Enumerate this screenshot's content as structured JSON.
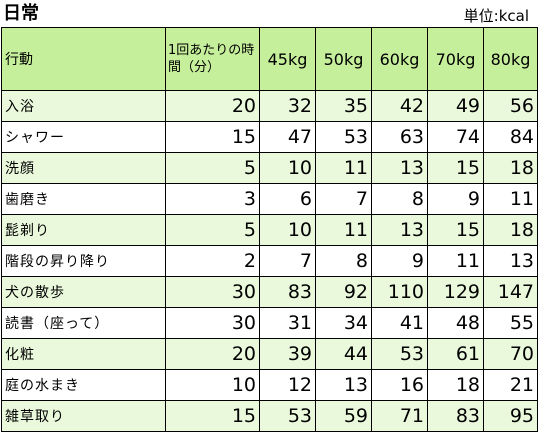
{
  "title": "日常",
  "unit": "単位:kcal",
  "headers": {
    "activity": "行動",
    "time": "1回あたりの時間（分）",
    "weights": [
      "45kg",
      "50kg",
      "60kg",
      "70kg",
      "80kg"
    ]
  },
  "rows": [
    {
      "activity": "入浴",
      "time": "20",
      "v": [
        "32",
        "35",
        "42",
        "49",
        "56"
      ]
    },
    {
      "activity": "シャワー",
      "time": "15",
      "v": [
        "47",
        "53",
        "63",
        "74",
        "84"
      ]
    },
    {
      "activity": "洗顔",
      "time": "5",
      "v": [
        "10",
        "11",
        "13",
        "15",
        "18"
      ]
    },
    {
      "activity": "歯磨き",
      "time": "3",
      "v": [
        "6",
        "7",
        "8",
        "9",
        "11"
      ]
    },
    {
      "activity": "髭剃り",
      "time": "5",
      "v": [
        "10",
        "11",
        "13",
        "15",
        "18"
      ]
    },
    {
      "activity": "階段の昇り降り",
      "time": "2",
      "v": [
        "7",
        "8",
        "9",
        "11",
        "13"
      ]
    },
    {
      "activity": "犬の散歩",
      "time": "30",
      "v": [
        "83",
        "92",
        "110",
        "129",
        "147"
      ]
    },
    {
      "activity": "読書（座って）",
      "time": "30",
      "v": [
        "31",
        "34",
        "41",
        "48",
        "55"
      ]
    },
    {
      "activity": "化粧",
      "time": "20",
      "v": [
        "39",
        "44",
        "53",
        "61",
        "70"
      ]
    },
    {
      "activity": "庭の水まき",
      "time": "10",
      "v": [
        "12",
        "13",
        "16",
        "18",
        "21"
      ]
    },
    {
      "activity": "雑草取り",
      "time": "15",
      "v": [
        "53",
        "59",
        "71",
        "83",
        "95"
      ]
    }
  ]
}
